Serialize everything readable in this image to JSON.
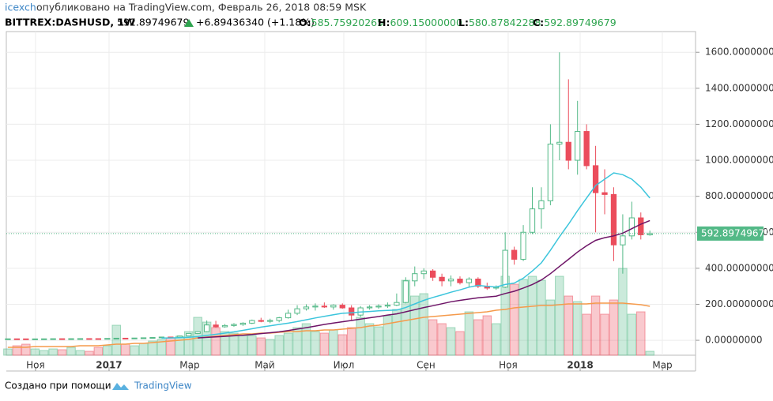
{
  "header": {
    "author": "icexch",
    "published": "опубликовано на TradingView.com, Февраль 26, 2018 08:59 MSK",
    "symbol": "BITTREX:DASHUSD, 1W",
    "last": "592.89749679",
    "change": "+6.89436340 (+1.18%)",
    "ohlc": [
      {
        "label": "O:",
        "value": "585.75920265"
      },
      {
        "label": "H:",
        "value": "609.15000000"
      },
      {
        "label": "L:",
        "value": "580.87842288"
      },
      {
        "label": "C:",
        "value": "592.89749679"
      }
    ]
  },
  "chart_data": {
    "type": "candlestick",
    "up_color": "#53b987",
    "down_color": "#eb4d5c",
    "open": [
      7.5,
      8,
      7.8,
      7.5,
      7.6,
      8,
      8.6,
      8.4,
      8.8,
      9.2,
      9,
      8.7,
      10.2,
      11.5,
      11.2,
      12.5,
      13.8,
      15.5,
      18,
      17.5,
      24,
      38,
      48,
      85,
      75,
      82,
      88,
      95,
      110,
      105,
      110,
      125,
      150,
      175,
      185,
      190,
      185,
      195,
      180,
      140,
      180,
      185,
      190,
      195,
      210,
      330,
      370,
      385,
      350,
      330,
      340,
      320,
      340,
      300,
      290,
      295,
      500,
      450,
      600,
      730,
      775,
      1090,
      1100,
      1000,
      1160,
      970,
      820,
      810,
      530,
      580,
      680,
      585.75920265
    ],
    "high": [
      8.5,
      8.5,
      8.2,
      8,
      8.3,
      9,
      9.2,
      9,
      9.5,
      9.8,
      9.5,
      10.5,
      13,
      12.5,
      13,
      14,
      16,
      19,
      20,
      25,
      40,
      50,
      110,
      108,
      90,
      95,
      100,
      115,
      125,
      120,
      130,
      170,
      195,
      200,
      205,
      210,
      200,
      205,
      195,
      190,
      195,
      200,
      210,
      260,
      350,
      410,
      400,
      395,
      370,
      360,
      355,
      350,
      350,
      320,
      305,
      600,
      520,
      640,
      850,
      850,
      1200,
      1600,
      1450,
      1330,
      1200,
      1080,
      950,
      850,
      700,
      770,
      710,
      609.15
    ],
    "low": [
      7,
      7.5,
      7.2,
      7,
      7.3,
      7.8,
      8,
      8,
      8.5,
      8.6,
      8.2,
      8.5,
      9.8,
      10.5,
      11,
      12,
      13,
      15,
      16.5,
      17,
      23,
      35,
      45,
      70,
      70,
      75,
      80,
      90,
      100,
      95,
      100,
      120,
      140,
      165,
      165,
      180,
      170,
      175,
      110,
      130,
      170,
      175,
      180,
      190,
      205,
      300,
      340,
      330,
      300,
      300,
      310,
      295,
      290,
      280,
      280,
      290,
      420,
      440,
      590,
      620,
      750,
      1000,
      950,
      920,
      950,
      600,
      700,
      440,
      370,
      560,
      560,
      580.87842288
    ],
    "close": [
      8,
      7.8,
      7.5,
      7.6,
      8,
      8.6,
      8.4,
      8.8,
      9.2,
      9,
      8.7,
      10.2,
      11.5,
      11.2,
      12.5,
      13.8,
      15.5,
      18,
      17.5,
      24,
      38,
      48,
      85,
      75,
      82,
      88,
      95,
      110,
      105,
      110,
      125,
      150,
      175,
      185,
      190,
      185,
      195,
      180,
      140,
      180,
      185,
      190,
      195,
      210,
      330,
      370,
      385,
      350,
      330,
      340,
      320,
      340,
      300,
      290,
      295,
      500,
      450,
      600,
      730,
      775,
      1090,
      1100,
      1000,
      1160,
      970,
      820,
      810,
      530,
      580,
      680,
      586,
      592.89749679
    ],
    "series": [
      {
        "color": "#3cc5dc",
        "values": [
          null,
          null,
          null,
          null,
          null,
          null,
          null,
          null,
          null,
          null,
          null,
          null,
          null,
          null,
          null,
          null,
          null,
          12,
          13,
          14.5,
          17,
          20.5,
          27,
          33,
          40,
          47,
          55,
          64,
          73,
          80,
          88,
          95,
          104,
          114,
          124,
          133,
          142,
          150,
          153,
          157,
          160,
          164,
          166,
          168,
          182,
          202,
          222,
          238,
          252,
          267,
          280,
          295,
          305,
          300,
          296,
          310,
          318,
          345,
          385,
          430,
          500,
          575,
          645,
          720,
          790,
          860,
          895,
          930,
          920,
          895,
          850,
          790
        ]
      },
      {
        "color": "#6e1467",
        "values": [
          null,
          null,
          null,
          null,
          null,
          null,
          null,
          null,
          null,
          null,
          null,
          null,
          null,
          null,
          null,
          null,
          null,
          null,
          null,
          null,
          null,
          13,
          16,
          19,
          22,
          25,
          28,
          32,
          37,
          42,
          47,
          54,
          62,
          70,
          79,
          88,
          96,
          103,
          110,
          118,
          125,
          132,
          140,
          147,
          158,
          170,
          182,
          192,
          203,
          214,
          222,
          229,
          236,
          240,
          245,
          260,
          272,
          290,
          310,
          335,
          370,
          410,
          450,
          490,
          525,
          555,
          570,
          580,
          595,
          620,
          645,
          665
        ]
      }
    ],
    "volume": {
      "values": [
        8,
        12,
        14,
        8,
        6,
        8,
        7,
        10,
        6,
        5,
        10,
        12,
        38,
        14,
        12,
        15,
        18,
        20,
        22,
        24,
        30,
        48,
        42,
        35,
        30,
        28,
        25,
        25,
        22,
        20,
        25,
        28,
        35,
        40,
        30,
        28,
        32,
        26,
        35,
        48,
        40,
        36,
        50,
        58,
        95,
        75,
        78,
        45,
        40,
        35,
        30,
        55,
        45,
        50,
        40,
        100,
        90,
        96,
        100,
        95,
        70,
        100,
        75,
        68,
        52,
        75,
        52,
        70,
        110,
        52,
        55,
        5
      ],
      "ma": [
        10,
        10,
        10,
        11,
        11,
        11,
        11,
        11,
        12,
        12,
        12,
        13,
        14,
        14,
        15,
        15,
        16,
        17,
        18,
        19,
        20,
        22,
        23,
        24,
        25,
        26,
        27,
        27,
        28,
        28,
        29,
        30,
        30,
        31,
        31,
        32,
        32,
        33,
        34,
        35,
        37,
        38,
        40,
        42,
        44,
        46,
        48,
        49,
        50,
        51,
        52,
        53,
        54,
        55,
        57,
        58,
        60,
        61,
        62,
        63,
        63,
        64,
        65,
        65,
        65,
        66,
        66,
        66,
        66,
        65,
        64,
        62
      ],
      "ma_color": "#f59a4b",
      "y2lim": [
        0,
        410
      ]
    },
    "last_price": {
      "value": 592.89749679,
      "label": "592.89749679",
      "color": "#53b987"
    },
    "ylim": [
      -83,
      1715
    ],
    "yticks": [
      {
        "value": 0,
        "label": "0.00000000"
      },
      {
        "value": 200,
        "label": "200.00000000"
      },
      {
        "value": 400,
        "label": "400.00000000"
      },
      {
        "value": 600,
        "label": "600.00000000"
      },
      {
        "value": 800,
        "label": "800.00000000"
      },
      {
        "value": 1000,
        "label": "1000.00000000"
      },
      {
        "value": 1200,
        "label": "1200.00000000"
      },
      {
        "value": 1400,
        "label": "1400.00000000"
      },
      {
        "value": 1600,
        "label": "1600.00000000"
      }
    ],
    "xlim": [
      -0.17,
      76.05
    ],
    "xticks": [
      {
        "value": 3.06,
        "label": "Ноя"
      },
      {
        "value": 11.19,
        "label": "2017"
      },
      {
        "value": 20.1,
        "label": "Мар"
      },
      {
        "value": 28.41,
        "label": "Май"
      },
      {
        "value": 37.15,
        "label": "Июл"
      },
      {
        "value": 46.24,
        "label": "Сен"
      },
      {
        "value": 55.33,
        "label": "Ноя"
      },
      {
        "value": 63.29,
        "label": "2018"
      },
      {
        "value": 72.38,
        "label": "Мар"
      }
    ],
    "grid": true
  },
  "footer": {
    "text": "Создано при помощи",
    "brand": "TradingView"
  }
}
